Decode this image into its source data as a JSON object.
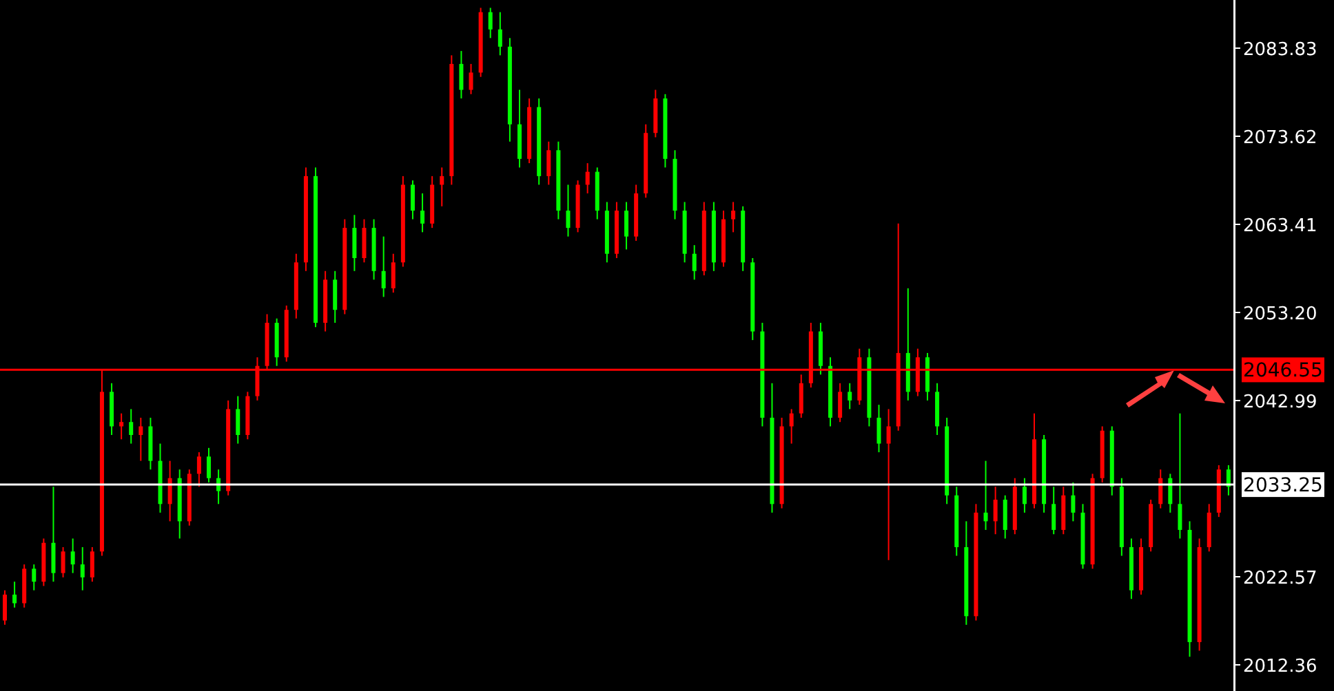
{
  "chart_data": {
    "type": "candlestick",
    "categories": [
      null,
      null,
      null,
      null,
      null,
      null,
      null,
      null,
      null,
      null,
      null,
      null,
      null,
      null,
      null,
      null,
      null,
      null,
      null,
      null,
      null,
      null,
      null,
      null,
      null,
      null,
      null,
      null,
      null,
      null,
      null,
      null,
      null,
      null,
      null,
      null,
      null,
      null,
      null,
      null,
      null,
      null,
      null,
      null,
      null,
      null,
      null,
      null,
      null,
      null,
      null,
      null,
      null,
      null,
      null,
      null,
      null,
      null,
      null,
      null,
      null,
      null,
      null,
      null,
      null,
      null,
      null,
      null,
      null,
      null,
      null,
      null,
      null,
      null,
      null,
      null,
      null,
      null,
      null,
      null,
      null,
      null,
      null,
      null,
      null,
      null,
      null,
      null,
      null,
      null,
      null,
      null,
      null,
      null,
      null,
      null,
      null,
      null,
      null,
      null,
      null,
      null,
      null,
      null,
      null,
      null,
      null,
      null,
      null,
      null,
      null,
      null,
      null,
      null,
      null,
      null,
      null,
      null,
      null,
      null,
      null,
      null,
      null,
      null,
      null,
      null,
      null
    ],
    "ohlc": [
      [
        2017.5,
        2021,
        2017,
        2020.5
      ],
      [
        2020.5,
        2022,
        2019,
        2019.5
      ],
      [
        2019.5,
        2024,
        2019,
        2023.5
      ],
      [
        2023.5,
        2024,
        2021,
        2022
      ],
      [
        2022,
        2027,
        2021.5,
        2026.5
      ],
      [
        2026.5,
        2033,
        2022,
        2023
      ],
      [
        2023,
        2026,
        2022.5,
        2025.5
      ],
      [
        2025.5,
        2027,
        2023,
        2024
      ],
      [
        2024,
        2026,
        2021,
        2022.5
      ],
      [
        2022.5,
        2026,
        2022,
        2025.5
      ],
      [
        2025.5,
        2046.5,
        2025,
        2044
      ],
      [
        2044,
        2045,
        2039,
        2040
      ],
      [
        2040,
        2041.5,
        2038.5,
        2040.5
      ],
      [
        2040.5,
        2042,
        2038,
        2039
      ],
      [
        2039,
        2041,
        2036,
        2040
      ],
      [
        2040,
        2041,
        2035,
        2036
      ],
      [
        2036,
        2038,
        2030,
        2031
      ],
      [
        2031,
        2036,
        2029,
        2034
      ],
      [
        2034,
        2035,
        2027,
        2029
      ],
      [
        2029,
        2035,
        2028.5,
        2034.5
      ],
      [
        2034.5,
        2037,
        2033,
        2036.5
      ],
      [
        2036.5,
        2037.5,
        2033.5,
        2034
      ],
      [
        2034,
        2035,
        2031,
        2032.5
      ],
      [
        2032.5,
        2043,
        2032,
        2042
      ],
      [
        2042,
        2043.5,
        2038,
        2039
      ],
      [
        2039,
        2044,
        2038.5,
        2043.5
      ],
      [
        2043.5,
        2048,
        2043,
        2047
      ],
      [
        2047,
        2053,
        2046.5,
        2052
      ],
      [
        2052,
        2052.5,
        2047,
        2048
      ],
      [
        2048,
        2054,
        2047.5,
        2053.5
      ],
      [
        2053.5,
        2060,
        2052.5,
        2059
      ],
      [
        2059,
        2070,
        2058,
        2069
      ],
      [
        2069,
        2070,
        2051.5,
        2052
      ],
      [
        2052,
        2058,
        2051,
        2057
      ],
      [
        2057,
        2058,
        2052,
        2053.5
      ],
      [
        2053.5,
        2064,
        2053,
        2063
      ],
      [
        2063,
        2064.5,
        2058,
        2059.5
      ],
      [
        2059.5,
        2064,
        2059,
        2063
      ],
      [
        2063,
        2064,
        2057,
        2058
      ],
      [
        2058,
        2062,
        2055,
        2056
      ],
      [
        2056,
        2060,
        2055.5,
        2059
      ],
      [
        2059,
        2069,
        2058.5,
        2068
      ],
      [
        2068,
        2068.5,
        2064,
        2065
      ],
      [
        2065,
        2067,
        2062.5,
        2063.5
      ],
      [
        2063.5,
        2069,
        2063,
        2068
      ],
      [
        2068,
        2070,
        2065.5,
        2069
      ],
      [
        2069,
        2083,
        2068,
        2082
      ],
      [
        2082,
        2083.5,
        2078,
        2079
      ],
      [
        2079,
        2082,
        2078.5,
        2081
      ],
      [
        2081,
        2088.5,
        2080.5,
        2088
      ],
      [
        2088,
        2088.5,
        2085,
        2086
      ],
      [
        2086,
        2088,
        2083,
        2084
      ],
      [
        2084,
        2085,
        2073,
        2075
      ],
      [
        2075,
        2079,
        2070,
        2071
      ],
      [
        2071,
        2078,
        2070.5,
        2077
      ],
      [
        2077,
        2078,
        2068,
        2069
      ],
      [
        2069,
        2073,
        2068,
        2072
      ],
      [
        2072,
        2073,
        2064,
        2065
      ],
      [
        2065,
        2068,
        2062,
        2063
      ],
      [
        2063,
        2068.5,
        2062.5,
        2068
      ],
      [
        2068,
        2070.5,
        2067,
        2069.5
      ],
      [
        2069.5,
        2070,
        2064,
        2065
      ],
      [
        2065,
        2066,
        2059,
        2060
      ],
      [
        2060,
        2066,
        2059.5,
        2065
      ],
      [
        2065,
        2066,
        2060.5,
        2062
      ],
      [
        2062,
        2068,
        2061.5,
        2067
      ],
      [
        2067,
        2075,
        2066.5,
        2074
      ],
      [
        2074,
        2079,
        2073.5,
        2078
      ],
      [
        2078,
        2078.5,
        2070,
        2071
      ],
      [
        2071,
        2072,
        2064,
        2065
      ],
      [
        2065,
        2066,
        2059,
        2060
      ],
      [
        2060,
        2061,
        2057,
        2058
      ],
      [
        2058,
        2066,
        2057.5,
        2065
      ],
      [
        2065,
        2066,
        2058,
        2059
      ],
      [
        2059,
        2065,
        2058.5,
        2064
      ],
      [
        2064,
        2066,
        2062.5,
        2065
      ],
      [
        2065,
        2065.5,
        2058,
        2059
      ],
      [
        2059,
        2059.5,
        2050,
        2051
      ],
      [
        2051,
        2052,
        2040,
        2041
      ],
      [
        2041,
        2045,
        2030,
        2031
      ],
      [
        2031,
        2041,
        2030.5,
        2040
      ],
      [
        2040,
        2042,
        2038,
        2041.5
      ],
      [
        2041.5,
        2046,
        2041,
        2045
      ],
      [
        2045,
        2052,
        2044.5,
        2051
      ],
      [
        2051,
        2052,
        2046,
        2047
      ],
      [
        2047,
        2048,
        2040,
        2041
      ],
      [
        2041,
        2045,
        2040.5,
        2044
      ],
      [
        2044,
        2045,
        2042,
        2043
      ],
      [
        2043,
        2049,
        2042.5,
        2048
      ],
      [
        2048,
        2049,
        2040,
        2041
      ],
      [
        2041,
        2042.5,
        2037,
        2038
      ],
      [
        2038,
        2042,
        2024.5,
        2040
      ],
      [
        2040,
        2063.5,
        2039.5,
        2048.5
      ],
      [
        2048.5,
        2056,
        2043,
        2044
      ],
      [
        2044,
        2049,
        2043.5,
        2048
      ],
      [
        2048,
        2048.5,
        2043,
        2044
      ],
      [
        2044,
        2045,
        2039,
        2040
      ],
      [
        2040,
        2041,
        2031,
        2032
      ],
      [
        2032,
        2033,
        2025,
        2026
      ],
      [
        2026,
        2029,
        2017,
        2018
      ],
      [
        2018,
        2031,
        2017.5,
        2030
      ],
      [
        2030,
        2036,
        2028,
        2029
      ],
      [
        2029,
        2033,
        2027.5,
        2031.5
      ],
      [
        2031.5,
        2032,
        2027,
        2028
      ],
      [
        2028,
        2034,
        2027.5,
        2033
      ],
      [
        2033,
        2034,
        2030,
        2031
      ],
      [
        2031,
        2041.5,
        2030.5,
        2038.5
      ],
      [
        2038.5,
        2039,
        2030,
        2031
      ],
      [
        2031,
        2033,
        2027.5,
        2028
      ],
      [
        2028,
        2033,
        2027.5,
        2032
      ],
      [
        2032,
        2033.5,
        2029,
        2030
      ],
      [
        2030,
        2031,
        2023.5,
        2024
      ],
      [
        2024,
        2034.5,
        2023.5,
        2034
      ],
      [
        2034,
        2040,
        2033.5,
        2039.5
      ],
      [
        2039.5,
        2040,
        2032,
        2033
      ],
      [
        2033,
        2034,
        2025,
        2026
      ],
      [
        2026,
        2027,
        2020,
        2021
      ],
      [
        2021,
        2027,
        2020.5,
        2026
      ],
      [
        2026,
        2031.5,
        2025.5,
        2031
      ],
      [
        2031,
        2035,
        2030.5,
        2034
      ],
      [
        2034,
        2034.5,
        2030,
        2031
      ],
      [
        2031,
        2041.5,
        2027,
        2028
      ],
      [
        2028,
        2029,
        2013.3,
        2015
      ],
      [
        2015,
        2027,
        2014,
        2026
      ],
      [
        2026,
        2031,
        2025.5,
        2030
      ],
      [
        2030,
        2035.5,
        2029.5,
        2035
      ],
      [
        2035,
        2035.5,
        2032,
        2033
      ]
    ],
    "colors": [
      "#ff0000",
      "#00ff00",
      "#ff0000",
      "#00ff00",
      "#ff0000",
      "#00ff00",
      "#ff0000",
      "#00ff00",
      "#00ff00",
      "#ff0000",
      "#ff0000",
      "#00ff00",
      "#ff0000",
      "#00ff00",
      "#ff0000",
      "#00ff00",
      "#00ff00",
      "#ff0000",
      "#00ff00",
      "#ff0000",
      "#ff0000",
      "#00ff00",
      "#00ff00",
      "#ff0000",
      "#00ff00",
      "#ff0000",
      "#ff0000",
      "#ff0000",
      "#00ff00",
      "#ff0000",
      "#ff0000",
      "#ff0000",
      "#00ff00",
      "#ff0000",
      "#00ff00",
      "#ff0000",
      "#00ff00",
      "#ff0000",
      "#00ff00",
      "#00ff00",
      "#ff0000",
      "#ff0000",
      "#00ff00",
      "#00ff00",
      "#ff0000",
      "#ff0000",
      "#ff0000",
      "#00ff00",
      "#ff0000",
      "#ff0000",
      "#00ff00",
      "#00ff00",
      "#00ff00",
      "#00ff00",
      "#ff0000",
      "#00ff00",
      "#ff0000",
      "#00ff00",
      "#00ff00",
      "#ff0000",
      "#ff0000",
      "#00ff00",
      "#00ff00",
      "#ff0000",
      "#00ff00",
      "#ff0000",
      "#ff0000",
      "#ff0000",
      "#00ff00",
      "#00ff00",
      "#00ff00",
      "#00ff00",
      "#ff0000",
      "#00ff00",
      "#ff0000",
      "#ff0000",
      "#00ff00",
      "#00ff00",
      "#00ff00",
      "#00ff00",
      "#ff0000",
      "#ff0000",
      "#ff0000",
      "#ff0000",
      "#00ff00",
      "#00ff00",
      "#ff0000",
      "#00ff00",
      "#ff0000",
      "#00ff00",
      "#00ff00",
      "#ff0000",
      "#ff0000",
      "#00ff00",
      "#ff0000",
      "#00ff00",
      "#00ff00",
      "#00ff00",
      "#00ff00",
      "#00ff00",
      "#ff0000",
      "#00ff00",
      "#ff0000",
      "#00ff00",
      "#ff0000",
      "#00ff00",
      "#ff0000",
      "#00ff00",
      "#00ff00",
      "#ff0000",
      "#00ff00",
      "#00ff00",
      "#ff0000",
      "#ff0000",
      "#00ff00",
      "#00ff00",
      "#00ff00",
      "#ff0000",
      "#ff0000",
      "#ff0000",
      "#00ff00",
      "#00ff00",
      "#00ff00",
      "#ff0000",
      "#ff0000",
      "#ff0000",
      "#00ff00"
    ],
    "ylim": [
      2009.33,
      2089.41
    ],
    "yticks": [
      2012.36,
      2022.57,
      2042.99,
      {
        "value": 2053.2,
        "label": "2053.20"
      },
      2063.41,
      2073.62,
      2083.83
    ],
    "ref_lines": [
      {
        "axis": "y",
        "value": 2046.55,
        "label": "2046.55",
        "color": "#ff0000"
      },
      {
        "axis": "y",
        "value": 2033.25,
        "label": "2033.25",
        "color": "#ffffff"
      }
    ],
    "tick_labels": "y"
  }
}
